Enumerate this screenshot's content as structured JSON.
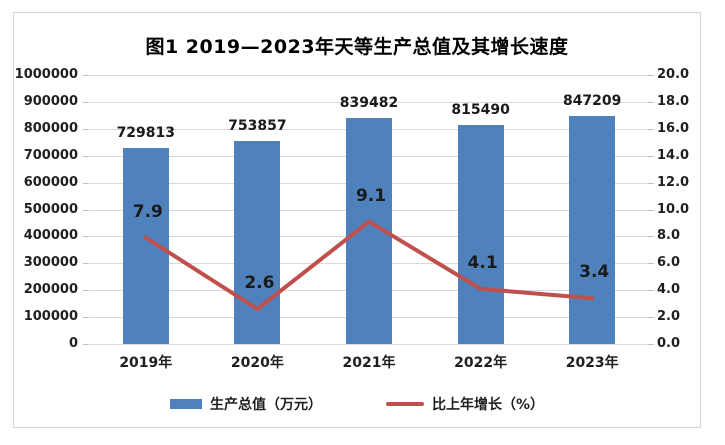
{
  "chart_data": {
    "type": "bar",
    "combo": "bar+line",
    "title": "图1 2019—2023年天等生产总值及其增长速度",
    "categories": [
      "2019年",
      "2020年",
      "2021年",
      "2022年",
      "2023年"
    ],
    "series": [
      {
        "name": "生产总值（万元）",
        "type": "bar",
        "axis": "left",
        "values": [
          729813,
          753857,
          839482,
          815490,
          847209
        ],
        "color": "#4f81bd"
      },
      {
        "name": "比上年增长（%）",
        "type": "line",
        "axis": "right",
        "values": [
          7.9,
          2.6,
          9.1,
          4.1,
          3.4
        ],
        "color": "#c0504d"
      }
    ],
    "left_axis": {
      "min": 0,
      "max": 1000000,
      "step": 100000,
      "decimals": 0
    },
    "right_axis": {
      "min": 0,
      "max": 20,
      "step": 2,
      "decimals": 1
    },
    "grid": true,
    "legend_position": "bottom",
    "colors": {
      "bar": "#4f81bd",
      "line": "#c0504d",
      "gridline": "#d9d9d9",
      "frame_border": "#d6d6d6",
      "text": "#1f1f1f"
    }
  }
}
